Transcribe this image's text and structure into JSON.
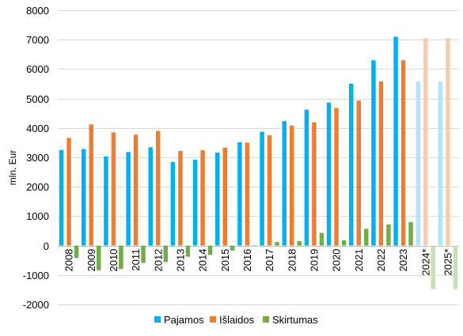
{
  "chart_data": {
    "type": "bar",
    "ylabel": "mln. Eur",
    "ylim": [
      -2000,
      8000
    ],
    "yticks": [
      -2000,
      -1000,
      0,
      1000,
      2000,
      3000,
      4000,
      5000,
      6000,
      7000,
      8000
    ],
    "grid": true,
    "legend_position": "bottom",
    "categories": [
      "2008",
      "2009",
      "2010",
      "2011",
      "2012",
      "2013",
      "2014",
      "2015",
      "2016",
      "2017",
      "2018",
      "2019",
      "2020",
      "2021",
      "2022",
      "2023",
      "2024*",
      "2025*"
    ],
    "forecast_categories": [
      "2024*",
      "2025*"
    ],
    "series": [
      {
        "name": "Pajamos",
        "color": "#00b0f0",
        "forecast_color": "#b3e4f7",
        "values": [
          3250,
          3280,
          3030,
          3180,
          3340,
          2840,
          2920,
          3160,
          3510,
          3870,
          4230,
          4620,
          4860,
          5500,
          6300,
          7100,
          5580,
          5580
        ]
      },
      {
        "name": "Išlaidos",
        "color": "#ed7d31",
        "forecast_color": "#f8cbad",
        "values": [
          3660,
          4120,
          3850,
          3770,
          3900,
          3220,
          3240,
          3330,
          3500,
          3750,
          4080,
          4190,
          4680,
          4930,
          5580,
          6300,
          7060,
          7060
        ]
      },
      {
        "name": "Skirtumas",
        "color": "#70ad47",
        "forecast_color": "#c5e0b4",
        "values": [
          -420,
          -840,
          -800,
          -590,
          -560,
          -380,
          -320,
          -170,
          10,
          120,
          150,
          430,
          180,
          570,
          720,
          800,
          -1480,
          -1480
        ]
      }
    ]
  }
}
